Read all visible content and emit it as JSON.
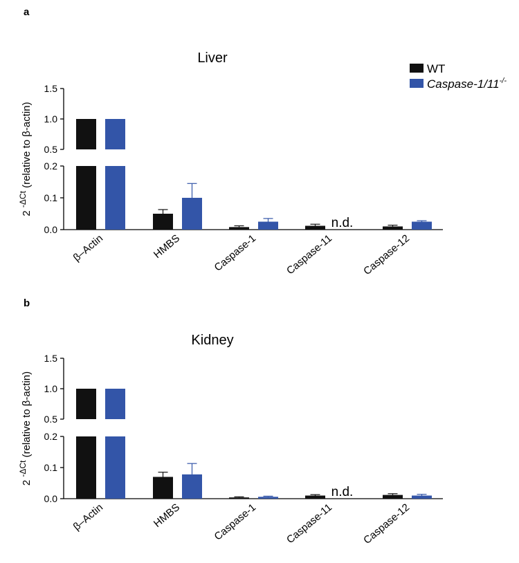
{
  "legend": {
    "items": [
      {
        "label": "WT",
        "color": "#111111"
      },
      {
        "label": "Caspase-1/11",
        "superscript": "-/-",
        "color": "#3355a8"
      }
    ],
    "placement": "top-right"
  },
  "chart_data": [
    {
      "panel_label": "a",
      "type": "bar",
      "title": "Liver",
      "ylabel_base": "2",
      "ylabel_exp": "-ΔCt",
      "ylabel_rest": "(relative to β-actin)",
      "y_axis_broken": true,
      "y_lower_range": [
        0,
        0.2
      ],
      "y_upper_range": [
        0.5,
        1.5
      ],
      "y_ticks_lower": [
        "0.0",
        "0.1",
        "0.2"
      ],
      "y_ticks_upper": [
        "0.5",
        "1.0",
        "1.5"
      ],
      "categories": [
        "β–Actin",
        "HMBS",
        "Caspase-1",
        "Caspase-11",
        "Caspase-12"
      ],
      "series": [
        {
          "name": "WT",
          "values": [
            1.0,
            0.05,
            0.008,
            0.012,
            0.01
          ],
          "errors": [
            0,
            0.013,
            0.004,
            0.005,
            0.004
          ]
        },
        {
          "name": "Caspase-1/11-/-",
          "values": [
            1.0,
            0.1,
            0.025,
            null,
            0.025
          ],
          "errors": [
            0,
            0.045,
            0.01,
            null,
            0.003
          ]
        }
      ],
      "annotations": [
        {
          "category": "Caspase-11",
          "series": "Caspase-1/11-/-",
          "text": "n.d."
        }
      ]
    },
    {
      "panel_label": "b",
      "type": "bar",
      "title": "Kidney",
      "ylabel_base": "2",
      "ylabel_exp": "-ΔCt",
      "ylabel_rest": "(relative to β-actin)",
      "y_axis_broken": true,
      "y_lower_range": [
        0,
        0.2
      ],
      "y_upper_range": [
        0.5,
        1.5
      ],
      "y_ticks_lower": [
        "0.0",
        "0.1",
        "0.2"
      ],
      "y_ticks_upper": [
        "0.5",
        "1.0",
        "1.5"
      ],
      "categories": [
        "β–Actin",
        "HMBS",
        "Caspase-1",
        "Caspase-11",
        "Caspase-12"
      ],
      "series": [
        {
          "name": "WT",
          "values": [
            1.0,
            0.07,
            0.004,
            0.01,
            0.012
          ],
          "errors": [
            0,
            0.015,
            0.002,
            0.003,
            0.004
          ]
        },
        {
          "name": "Caspase-1/11-/-",
          "values": [
            1.0,
            0.078,
            0.006,
            null,
            0.01
          ],
          "errors": [
            0,
            0.035,
            0.002,
            null,
            0.004
          ]
        }
      ],
      "annotations": [
        {
          "category": "Caspase-11",
          "series": "Caspase-1/11-/-",
          "text": "n.d."
        }
      ]
    }
  ]
}
